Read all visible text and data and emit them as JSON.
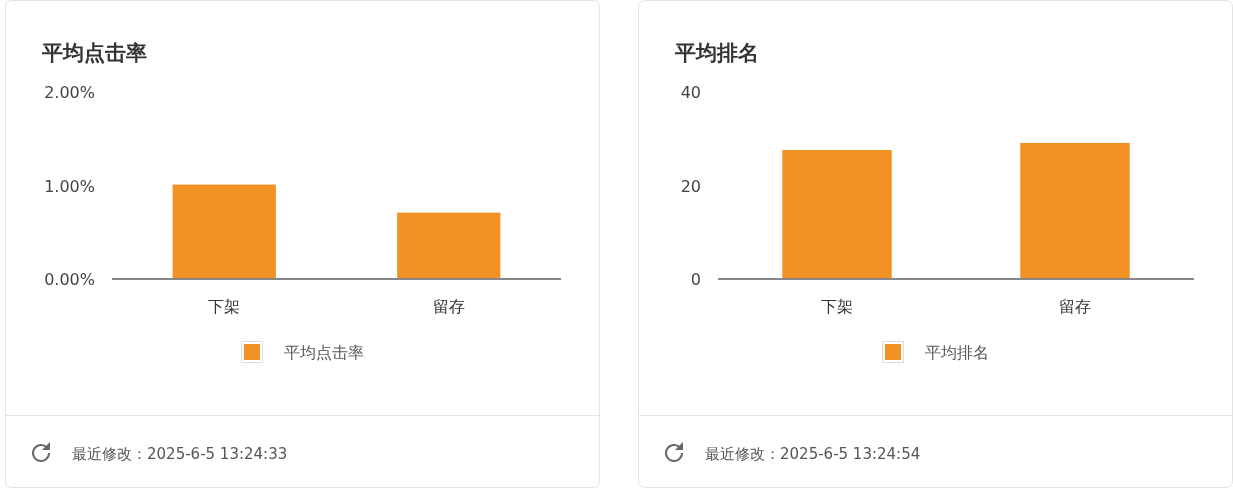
{
  "chart_data": [
    {
      "type": "bar",
      "title": "平均点击率",
      "categories": [
        "下架",
        "留存"
      ],
      "series": [
        {
          "name": "平均点击率",
          "color": "#f39224",
          "values": [
            1.01,
            0.71
          ]
        }
      ],
      "ylim": [
        0,
        2
      ],
      "yticks": [
        {
          "value": 0,
          "label": "0.00%"
        },
        {
          "value": 1,
          "label": "1.00%"
        },
        {
          "value": 2,
          "label": "2.00%"
        }
      ],
      "legend": "bottom",
      "annotations": [
        "最近修改：2025-6-5 13:24:33"
      ]
    },
    {
      "type": "bar",
      "title": "平均排名",
      "categories": [
        "下架",
        "留存"
      ],
      "series": [
        {
          "name": "平均排名",
          "color": "#f39224",
          "values": [
            27.6,
            29.1
          ]
        }
      ],
      "ylim": [
        0,
        40
      ],
      "yticks": [
        0,
        20,
        40
      ],
      "legend": "bottom",
      "annotations": [
        "最近修改：2025-6-5 13:24:54"
      ]
    }
  ]
}
